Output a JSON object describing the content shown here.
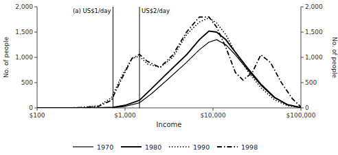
{
  "chart_data": {
    "type": "line",
    "xlabel": "Income",
    "ylabel": "No. of people",
    "y2label": "No. of people",
    "log": "x",
    "grid": false,
    "legend": "bottom",
    "xlim": [
      100,
      100000
    ],
    "xticks": [
      {
        "value": 100,
        "label": "$100"
      },
      {
        "value": 1000,
        "label": "$1,000"
      },
      {
        "value": 10000,
        "label": "$10,000"
      },
      {
        "value": 100000,
        "label": "$100,000"
      }
    ],
    "ylim": [
      0,
      2000
    ],
    "yticks": [
      0,
      500,
      {
        "value": 1000,
        "label": "1,000"
      },
      {
        "value": 1500,
        "label": "1,500"
      },
      {
        "value": 2000,
        "label": "2,000"
      }
    ],
    "y2lim": [
      0,
      2000
    ],
    "y2ticks": [
      0,
      500,
      {
        "value": 1000,
        "label": "1,000"
      },
      {
        "value": 1500,
        "label": "1,500"
      },
      {
        "value": 2000,
        "label": "2,000"
      }
    ],
    "annotations": [
      {
        "x": 730,
        "label": "(a) US$1/day"
      },
      {
        "x": 1460,
        "label": "US$2/day"
      }
    ],
    "series": [
      {
        "name": "1970",
        "color": "#000000",
        "line_style": "thin",
        "x": [
          100,
          200,
          300,
          500,
          730,
          1000,
          1460,
          2000,
          3000,
          5000,
          7000,
          9000,
          11000,
          14000,
          18000,
          25000,
          35000,
          50000,
          70000,
          100000
        ],
        "values": [
          0,
          0,
          0,
          0,
          5,
          30,
          100,
          280,
          550,
          900,
          1150,
          1300,
          1350,
          1250,
          1050,
          750,
          450,
          200,
          60,
          5
        ]
      },
      {
        "name": "1980",
        "color": "#000000",
        "line_style": "solid",
        "x": [
          100,
          200,
          300,
          500,
          730,
          1000,
          1460,
          2000,
          3000,
          5000,
          7000,
          9000,
          11000,
          14000,
          18000,
          25000,
          35000,
          50000,
          70000,
          100000
        ],
        "values": [
          0,
          0,
          0,
          0,
          10,
          50,
          150,
          380,
          680,
          1050,
          1350,
          1520,
          1500,
          1350,
          1100,
          780,
          470,
          210,
          65,
          8
        ]
      },
      {
        "name": "1990",
        "color": "#000000",
        "line_style": "dotted",
        "x": [
          100,
          200,
          300,
          500,
          700,
          900,
          1200,
          1460,
          1800,
          2500,
          3500,
          5000,
          7000,
          9000,
          11000,
          14000,
          18000,
          25000,
          35000,
          50000,
          70000,
          100000
        ],
        "values": [
          0,
          0,
          5,
          40,
          200,
          600,
          980,
          1020,
          870,
          800,
          1000,
          1450,
          1700,
          1780,
          1680,
          1450,
          1100,
          720,
          400,
          160,
          45,
          5
        ]
      },
      {
        "name": "1998",
        "color": "#000000",
        "line_style": "dashdot",
        "x": [
          100,
          200,
          300,
          500,
          700,
          900,
          1200,
          1460,
          1800,
          2500,
          3500,
          5000,
          7000,
          9000,
          11000,
          14000,
          18000,
          22000,
          28000,
          35000,
          45000,
          60000,
          80000,
          100000
        ],
        "values": [
          0,
          0,
          5,
          30,
          150,
          550,
          980,
          1060,
          920,
          800,
          1050,
          1500,
          1800,
          1800,
          1600,
          1200,
          700,
          550,
          700,
          1050,
          900,
          500,
          180,
          20
        ]
      }
    ]
  }
}
